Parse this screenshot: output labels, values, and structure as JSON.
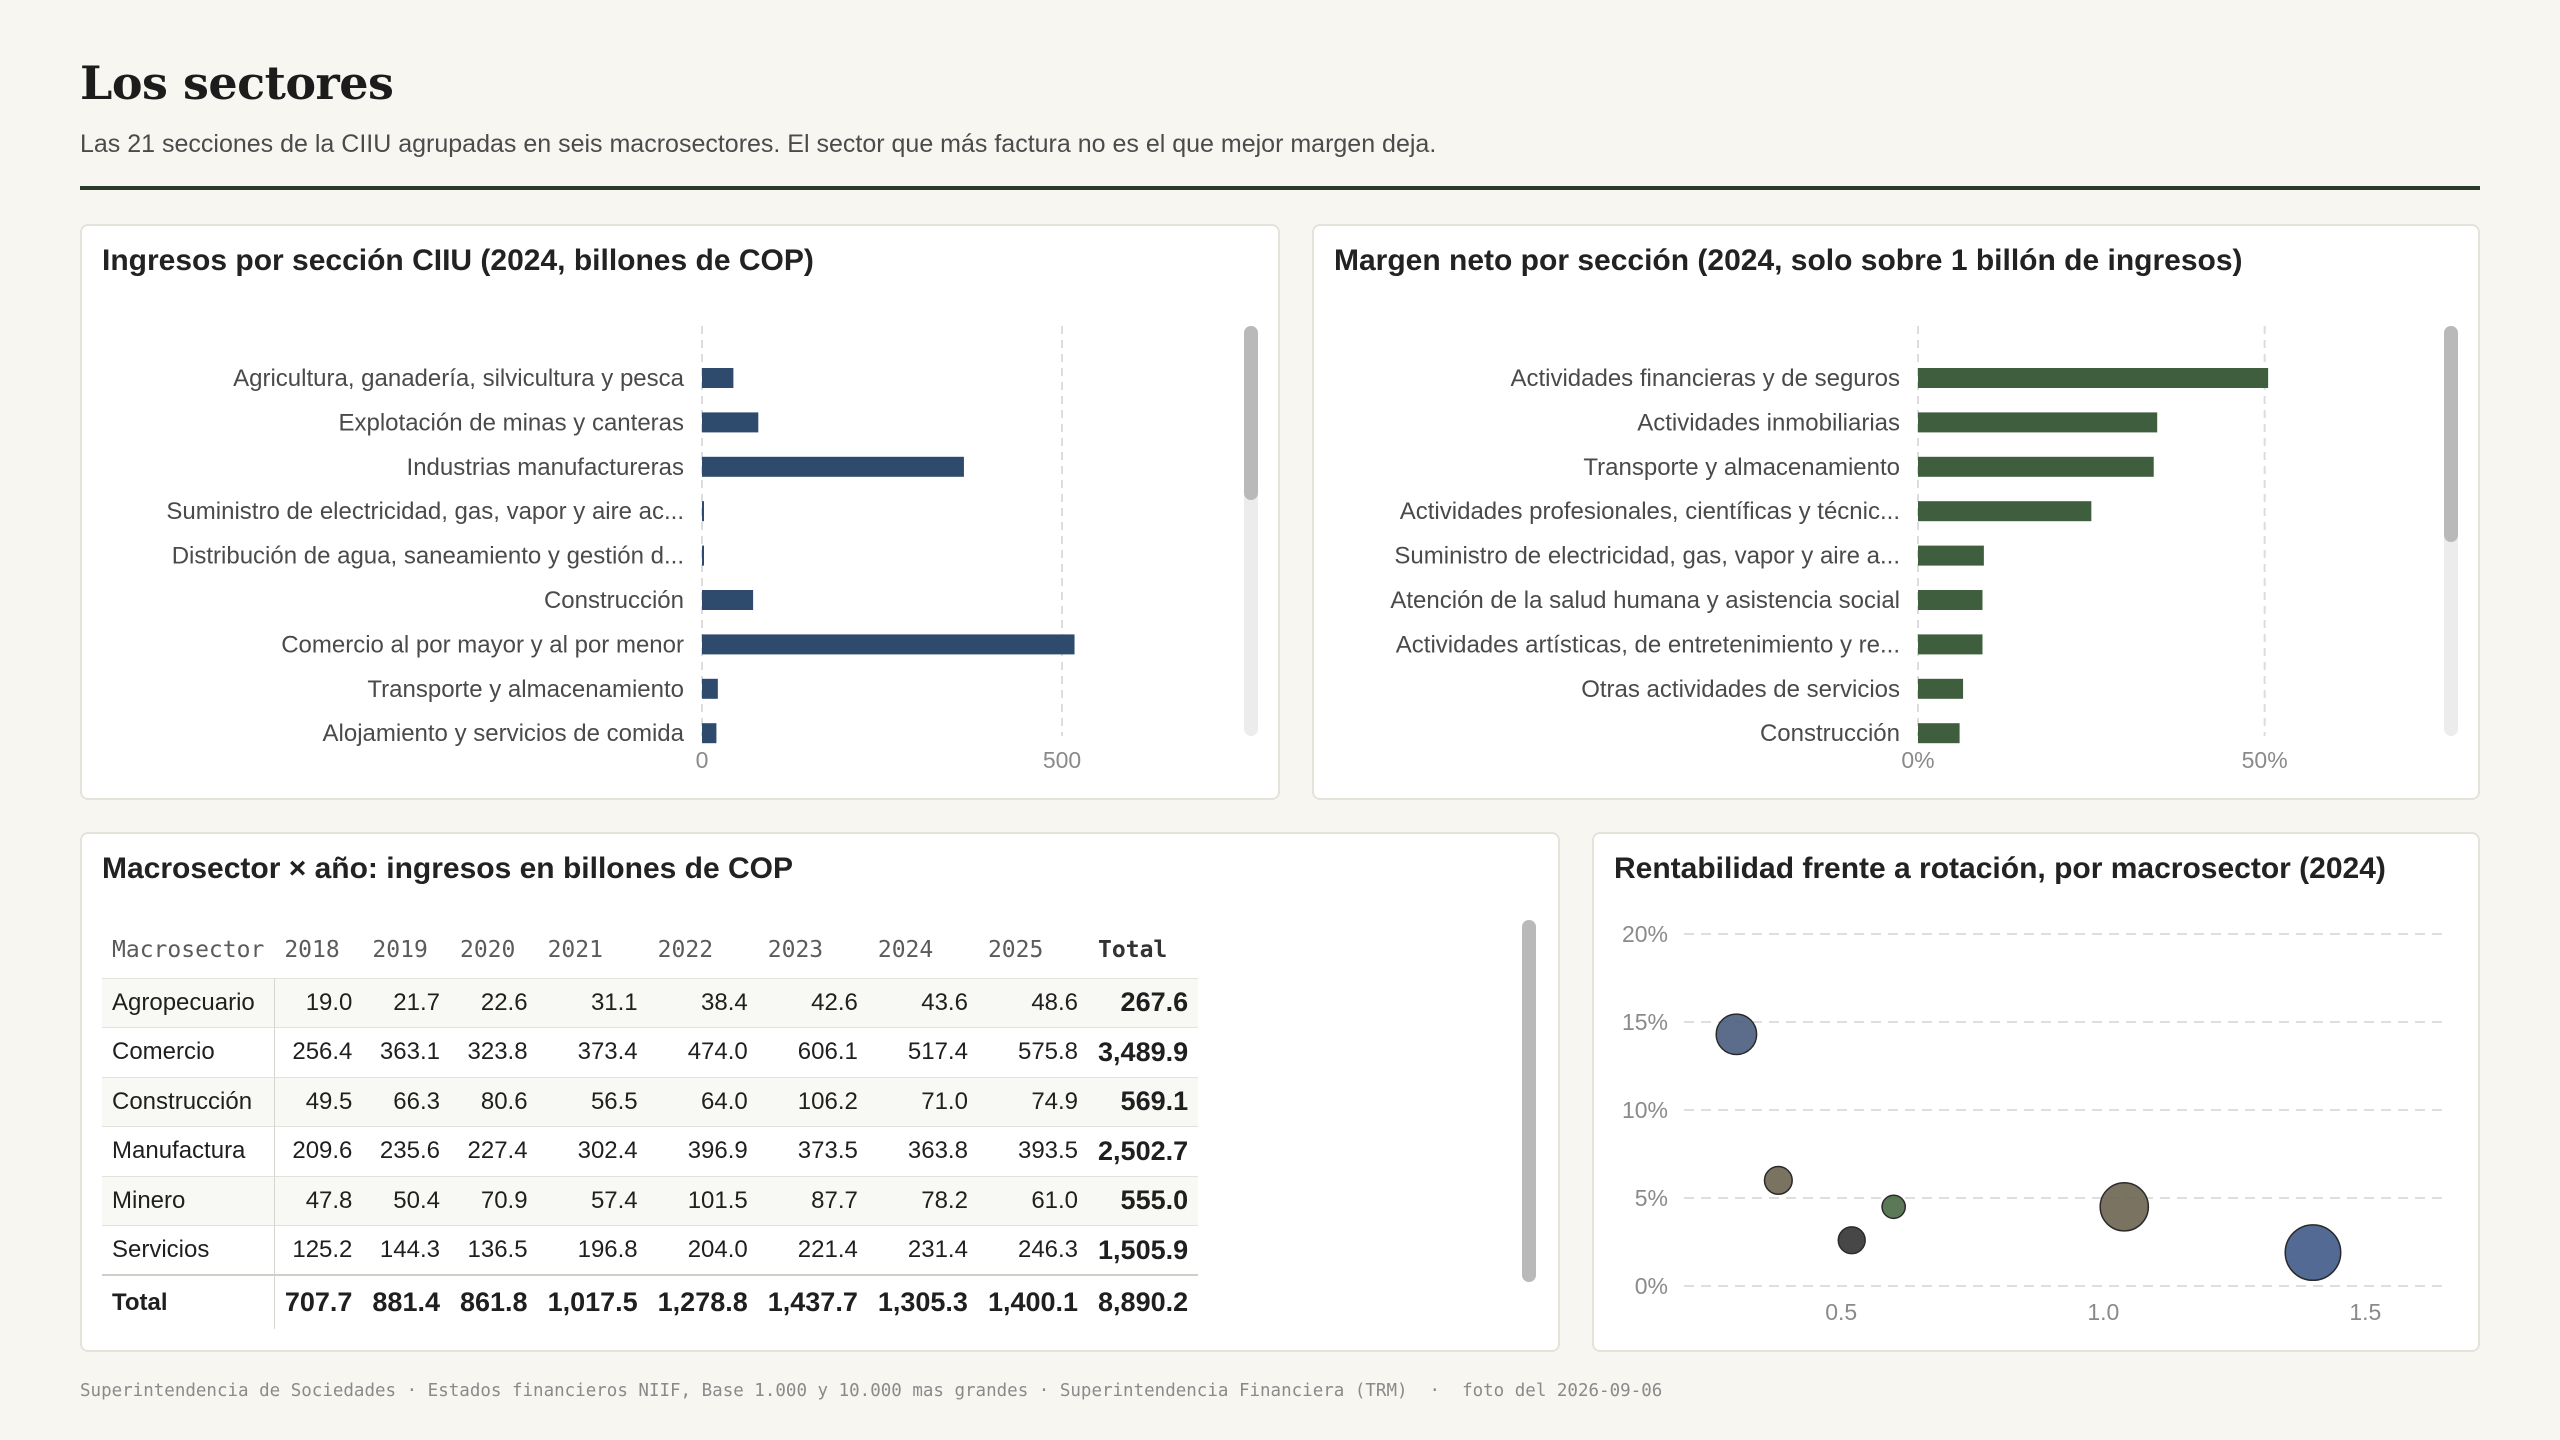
{
  "header": {
    "title": "Los sectores",
    "subtitle": "Las 21 secciones de la CIIU agrupadas en seis macrosectores. El sector que más factura no es el que mejor margen deja."
  },
  "colors": {
    "ingresos_bar": "#2e4b6e",
    "margen_bar": "#3e5e3e",
    "rule": "#2c3a2c"
  },
  "panels": {
    "ingresos": {
      "title": "Ingresos por sección CIIU (2024, billones de COP)"
    },
    "margen": {
      "title": "Margen neto por sección (2024, solo sobre 1 billón de ingresos)"
    },
    "tabla": {
      "title": "Macrosector × año: ingresos en billones de COP"
    },
    "scatter": {
      "title": "Rentabilidad frente a rotación, por macrosector (2024)"
    }
  },
  "chart_data": [
    {
      "type": "bar",
      "orientation": "horizontal",
      "title": "Ingresos por sección CIIU (2024, billones de COP)",
      "categories": [
        "Agricultura, ganadería, silvicultura y pesca",
        "Explotación de minas y canteras",
        "Industrias manufactureras",
        "Suministro de electricidad, gas, vapor y aire ac...",
        "Distribución de agua, saneamiento y gestión d...",
        "Construcción",
        "Comercio al por mayor y al por menor",
        "Transporte y almacenamiento",
        "Alojamiento y servicios de comida"
      ],
      "values": [
        43.6,
        78.2,
        363.8,
        2.5,
        2.0,
        71.0,
        517.4,
        22.0,
        20.0
      ],
      "xlim": [
        0,
        600
      ],
      "xticks": [
        "0",
        "500"
      ],
      "grid": true
    },
    {
      "type": "bar",
      "orientation": "horizontal",
      "title": "Margen neto por sección (2024, solo sobre 1 billón de ingresos)",
      "categories": [
        "Actividades financieras y de seguros",
        "Actividades inmobiliarias",
        "Transporte y almacenamiento",
        "Actividades profesionales, científicas y técnic...",
        "Suministro de electricidad, gas, vapor y aire a...",
        "Atención de la salud humana y asistencia social",
        "Actividades artísticas, de entretenimiento y re...",
        "Otras actividades de servicios",
        "Construcción"
      ],
      "values": [
        50.5,
        34.5,
        34.0,
        25.0,
        9.5,
        9.3,
        9.3,
        6.5,
        6.0
      ],
      "xlim": [
        0,
        60
      ],
      "xticks": [
        "0%",
        "50%"
      ],
      "grid": true
    },
    {
      "type": "table",
      "title": "Macrosector × año: ingresos en billones de COP",
      "columns": [
        "Macrosector",
        "2018",
        "2019",
        "2020",
        "2021",
        "2022",
        "2023",
        "2024",
        "2025",
        "Total"
      ],
      "rows": [
        [
          "Agropecuario",
          "19.0",
          "21.7",
          "22.6",
          "31.1",
          "38.4",
          "42.6",
          "43.6",
          "48.6",
          "267.6"
        ],
        [
          "Comercio",
          "256.4",
          "363.1",
          "323.8",
          "373.4",
          "474.0",
          "606.1",
          "517.4",
          "575.8",
          "3,489.9"
        ],
        [
          "Construcción",
          "49.5",
          "66.3",
          "80.6",
          "56.5",
          "64.0",
          "106.2",
          "71.0",
          "74.9",
          "569.1"
        ],
        [
          "Manufactura",
          "209.6",
          "235.6",
          "227.4",
          "302.4",
          "396.9",
          "373.5",
          "363.8",
          "393.5",
          "2,502.7"
        ],
        [
          "Minero",
          "47.8",
          "50.4",
          "70.9",
          "57.4",
          "101.5",
          "87.7",
          "78.2",
          "61.0",
          "555.0"
        ],
        [
          "Servicios",
          "125.2",
          "144.3",
          "136.5",
          "196.8",
          "204.0",
          "221.4",
          "231.4",
          "246.3",
          "1,505.9"
        ]
      ],
      "total_row": [
        "Total",
        "707.7",
        "881.4",
        "861.8",
        "1,017.5",
        "1,278.8",
        "1,437.7",
        "1,305.3",
        "1,400.1",
        "8,890.2"
      ]
    },
    {
      "type": "scatter",
      "title": "Rentabilidad frente a rotación, por macrosector (2024)",
      "xlim": [
        0.2,
        1.65
      ],
      "ylim": [
        0,
        20
      ],
      "xticks": [
        "0.5",
        "1.0",
        "1.5"
      ],
      "yticks": [
        "0%",
        "5%",
        "10%",
        "15%",
        "20%"
      ],
      "grid": true,
      "points": [
        {
          "x": 0.3,
          "y": 14.3,
          "size": 231.4,
          "color": "#4a5d80"
        },
        {
          "x": 0.38,
          "y": 6.0,
          "size": 78.2,
          "color": "#6b6450"
        },
        {
          "x": 0.52,
          "y": 2.6,
          "size": 71.0,
          "color": "#333333"
        },
        {
          "x": 0.6,
          "y": 4.5,
          "size": 43.6,
          "color": "#4a6a45"
        },
        {
          "x": 1.04,
          "y": 4.5,
          "size": 363.8,
          "color": "#6b6450"
        },
        {
          "x": 1.4,
          "y": 1.9,
          "size": 517.4,
          "color": "#3f5a88"
        }
      ]
    }
  ],
  "footer": {
    "sources": "Superintendencia de Sociedades · Estados financieros NIIF, Base 1.000 y 10.000 mas grandes · Superintendencia Financiera (TRM)",
    "separator": "·",
    "snapshot": "foto del 2026-09-06"
  }
}
